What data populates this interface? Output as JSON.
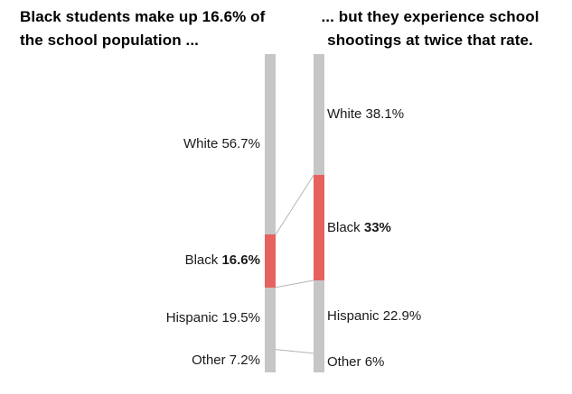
{
  "titles": {
    "left_lines": [
      "Black students make up 16.6% of",
      "the school population ..."
    ],
    "right_lines": [
      "... but they experience school",
      "shootings at twice that rate."
    ]
  },
  "colors": {
    "bar": "#c6c6c6",
    "highlight": "#e6625e",
    "connector": "#b5b5b5",
    "label_text": "#1a1a1a",
    "title_text": "#000000",
    "background": "#ffffff"
  },
  "chart_data": {
    "type": "bar",
    "subtype": "paired 100% stacked columns with slope connectors",
    "categories": [
      "White",
      "Black",
      "Hispanic",
      "Other"
    ],
    "highlight_category": "Black",
    "unit": "%",
    "ylim": [
      0,
      100
    ],
    "grid": false,
    "legend": false,
    "series": [
      {
        "name": "school population",
        "label_side": "left",
        "values": [
          56.7,
          16.6,
          19.5,
          7.2
        ],
        "value_labels": [
          "56.7%",
          "16.6%",
          "19.5%",
          "7.2%"
        ]
      },
      {
        "name": "school shootings",
        "label_side": "right",
        "values": [
          38.1,
          33,
          22.9,
          6
        ],
        "value_labels": [
          "38.1%",
          "33%",
          "22.9%",
          "6%"
        ]
      }
    ],
    "connected_boundaries": [
      1,
      2,
      3
    ],
    "title": "Black students make up 16.6% of the school population ... but they experience school shootings at twice that rate."
  }
}
